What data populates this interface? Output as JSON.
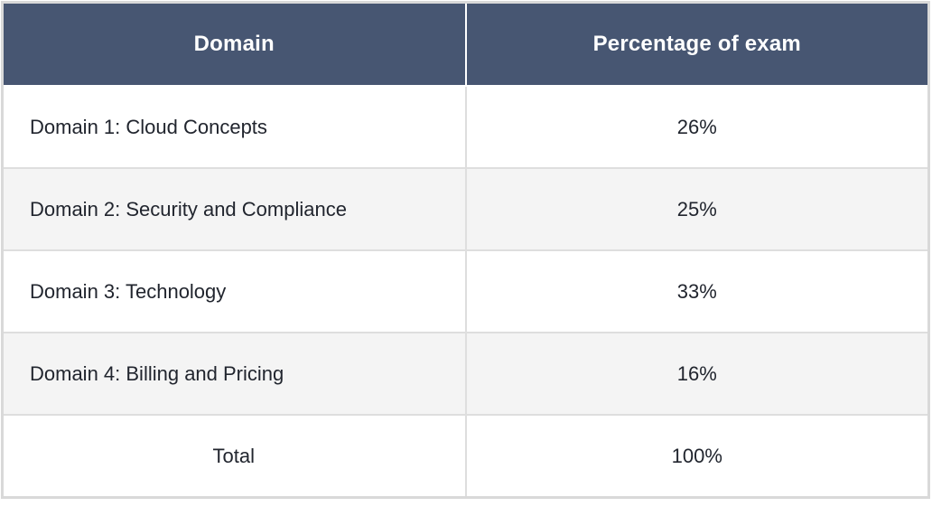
{
  "table": {
    "headers": [
      "Domain",
      "Percentage of exam"
    ],
    "rows": [
      {
        "domain": "Domain 1: Cloud Concepts",
        "percentage": "26%"
      },
      {
        "domain": "Domain 2: Security and Compliance",
        "percentage": "25%"
      },
      {
        "domain": "Domain 3: Technology",
        "percentage": "33%"
      },
      {
        "domain": "Domain 4: Billing and Pricing",
        "percentage": "16%"
      },
      {
        "domain": "Total",
        "percentage": "100%"
      }
    ],
    "colors": {
      "header_bg": "#475672",
      "header_text": "#ffffff",
      "row_bg": "#ffffff",
      "row_alt_bg": "#f4f4f4",
      "grid_border": "#dedede",
      "outer_border": "#d9d9d9",
      "body_text": "#21252e"
    }
  }
}
